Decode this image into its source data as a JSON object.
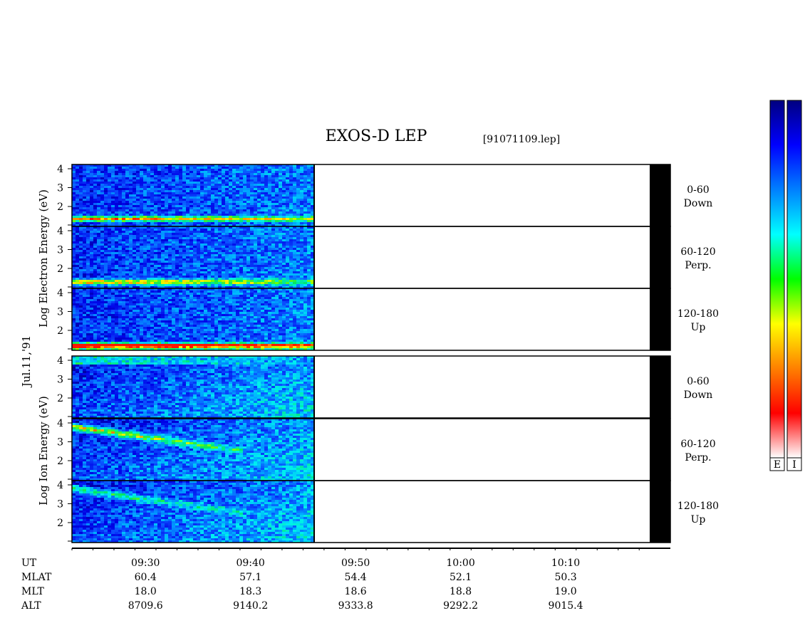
{
  "chart_data": {
    "type": "heatmap",
    "title": "EXOS-D LEP",
    "file_label": "[91071109.lep]",
    "date_label": "Jul.11,'91",
    "x_axis": {
      "tick_labels": [
        "09:30",
        "09:40",
        "09:50",
        "10:00",
        "10:10"
      ],
      "data_end_time": "09:46",
      "range": [
        "09:23",
        "10:18"
      ]
    },
    "orbit_table": {
      "row_labels": [
        "UT",
        "MLAT",
        "MLT",
        "ALT"
      ],
      "mlat": [
        "60.4",
        "57.1",
        "54.4",
        "52.1",
        "50.3"
      ],
      "mlt": [
        "18.0",
        "18.3",
        "18.6",
        "18.8",
        "19.0"
      ],
      "alt": [
        "8709.6",
        "9140.2",
        "9333.8",
        "9292.2",
        "9015.4"
      ]
    },
    "groups": [
      {
        "name": "Electron",
        "ylabel": [
          "Log",
          "Electron",
          "Energy (eV)"
        ],
        "panels": [
          {
            "pitch": "0-60",
            "direction": "Down",
            "y_ticks": [
              "2",
              "3",
              "4"
            ]
          },
          {
            "pitch": "60-120",
            "direction": "Perp.",
            "y_ticks": [
              "2",
              "3",
              "4"
            ]
          },
          {
            "pitch": "120-180",
            "direction": "Up",
            "y_ticks": [
              "2",
              "3",
              "4"
            ]
          }
        ]
      },
      {
        "name": "Ion",
        "ylabel": [
          "Log",
          "Ion",
          "Energy (eV)"
        ],
        "panels": [
          {
            "pitch": "0-60",
            "direction": "Down",
            "y_ticks": [
              "2",
              "3",
              "4"
            ]
          },
          {
            "pitch": "60-120",
            "direction": "Perp.",
            "y_ticks": [
              "2",
              "3",
              "4"
            ]
          },
          {
            "pitch": "120-180",
            "direction": "Up",
            "y_ticks": [
              "2",
              "3",
              "4"
            ]
          }
        ]
      }
    ],
    "colorbars": [
      {
        "label": "E",
        "colors": [
          "#000080",
          "#0000ff",
          "#0080ff",
          "#00ffff",
          "#00ff00",
          "#ffff00",
          "#ff8000",
          "#ff0000",
          "#ffffff"
        ]
      },
      {
        "label": "I",
        "colors": [
          "#000080",
          "#0000ff",
          "#0080ff",
          "#00ffff",
          "#00ff00",
          "#ffff00",
          "#ff8000",
          "#ff0000",
          "#ffffff"
        ]
      }
    ]
  }
}
